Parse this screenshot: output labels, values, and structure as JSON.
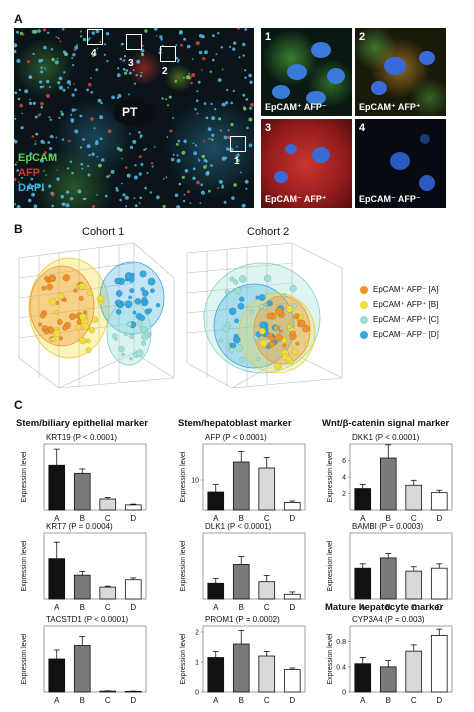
{
  "panelA": {
    "letter": "A",
    "pt_label": "PT",
    "stains": [
      {
        "text": "EpCAM",
        "color": "#5fd14a"
      },
      {
        "text": "AFP",
        "color": "#e8322a"
      },
      {
        "text": "DAPI",
        "color": "#41b6e6"
      }
    ],
    "boxes": [
      "4",
      "3",
      "2",
      "1"
    ],
    "insets": [
      {
        "num": "1",
        "caption": "EpCAM⁺ AFP⁻"
      },
      {
        "num": "2",
        "caption": "EpCAM⁺ AFP⁺"
      },
      {
        "num": "3",
        "caption": "EpCAM⁻ AFP⁺"
      },
      {
        "num": "4",
        "caption": "EpCAM⁻ AFP⁻"
      }
    ]
  },
  "panelB": {
    "letter": "B",
    "cohorts": [
      "Cohort 1",
      "Cohort 2"
    ],
    "legend": [
      {
        "text": "EpCAM⁺ AFP⁻ [A]",
        "color": "#f0922b"
      },
      {
        "text": "EpCAM⁺ AFP⁺ [B]",
        "color": "#f2dc3a"
      },
      {
        "text": "EpCAM⁻ AFP⁺ [C]",
        "color": "#9fe0d6"
      },
      {
        "text": "EpCAM⁻ AFP⁻ [D]",
        "color": "#35a8df"
      }
    ]
  },
  "panelC": {
    "letter": "C",
    "groups": [
      "Stem/biliary epithelial marker",
      "Stem/hepatoblast marker",
      "Wnt/β-catenin signal marker",
      "Mature hepatocyte marker"
    ],
    "ylabel": "Expression level",
    "categories": [
      "A",
      "B",
      "C",
      "D"
    ],
    "bar_colors": [
      "#111111",
      "#7a7a7a",
      "#d9d9d9",
      "#ffffff"
    ]
  },
  "chart_data": [
    {
      "type": "bar",
      "title": "KRT19 (P < 0.0001)",
      "ylabel": "Expression level",
      "categories": [
        "A",
        "B",
        "C",
        "D"
      ],
      "values": [
        6.1,
        5.0,
        1.5,
        0.7
      ],
      "errors": [
        2.2,
        0.6,
        0.2,
        0.1
      ],
      "ylim": [
        0,
        9
      ],
      "yticks": []
    },
    {
      "type": "bar",
      "title": "KRT7 (P = 0.0004)",
      "ylabel": "Expression level",
      "categories": [
        "A",
        "B",
        "C",
        "D"
      ],
      "values": [
        2.2,
        1.3,
        0.65,
        1.05
      ],
      "errors": [
        0.9,
        0.2,
        0.05,
        0.1
      ],
      "ylim": [
        0,
        3.6
      ],
      "yticks": []
    },
    {
      "type": "bar",
      "title": "TACSTD1 (P < 0.0001)",
      "ylabel": "Expression level",
      "categories": [
        "A",
        "B",
        "C",
        "D"
      ],
      "values": [
        11,
        15.5,
        0.3,
        0.2
      ],
      "errors": [
        3,
        3,
        0.1,
        0.1
      ],
      "ylim": [
        0,
        22
      ],
      "yticks": []
    },
    {
      "type": "bar",
      "title": "AFP (P < 0.0001)",
      "ylabel": "Expression level",
      "categories": [
        "A",
        "B",
        "C",
        "D"
      ],
      "values": [
        6,
        16,
        14,
        2.5
      ],
      "errors": [
        2.5,
        3.5,
        3.5,
        0.5
      ],
      "ylim": [
        0,
        22
      ],
      "yticks": [
        10
      ]
    },
    {
      "type": "bar",
      "title": "DLK1 (P < 0.0001)",
      "ylabel": "Expression level",
      "categories": [
        "A",
        "B",
        "C",
        "D"
      ],
      "values": [
        10,
        22,
        11,
        3
      ],
      "errors": [
        3,
        5,
        4,
        1.5
      ],
      "ylim": [
        0,
        42
      ],
      "yticks": []
    },
    {
      "type": "bar",
      "title": "PROM1 (P = 0.0002)",
      "ylabel": "Expression level",
      "categories": [
        "A",
        "B",
        "C",
        "D"
      ],
      "values": [
        1.15,
        1.6,
        1.2,
        0.75
      ],
      "errors": [
        0.2,
        0.45,
        0.15,
        0.05
      ],
      "ylim": [
        0,
        2.2
      ],
      "yticks": [
        0,
        1,
        2
      ]
    },
    {
      "type": "bar",
      "title": "DKK1 (P < 0.0001)",
      "ylabel": "Expression level",
      "categories": [
        "A",
        "B",
        "C",
        "D"
      ],
      "values": [
        2.6,
        6.3,
        3.0,
        2.1
      ],
      "errors": [
        0.5,
        1.6,
        0.6,
        0.3
      ],
      "ylim": [
        0,
        8
      ],
      "yticks": [
        2,
        4,
        6
      ]
    },
    {
      "type": "bar",
      "title": "BAMBI (P = 0.0003)",
      "ylabel": "Expression level",
      "categories": [
        "A",
        "B",
        "C",
        "D"
      ],
      "values": [
        2.1,
        2.8,
        1.9,
        2.1
      ],
      "errors": [
        0.3,
        0.3,
        0.3,
        0.3
      ],
      "ylim": [
        0,
        4.5
      ],
      "yticks": []
    },
    {
      "type": "bar",
      "title": "CYP3A4 (P = 0.003)",
      "ylabel": "Expression level",
      "categories": [
        "A",
        "B",
        "C",
        "D"
      ],
      "values": [
        0.45,
        0.4,
        0.65,
        0.9
      ],
      "errors": [
        0.1,
        0.1,
        0.1,
        0.1
      ],
      "ylim": [
        0,
        1.05
      ],
      "yticks": [
        0,
        0.4,
        0.8
      ]
    }
  ]
}
